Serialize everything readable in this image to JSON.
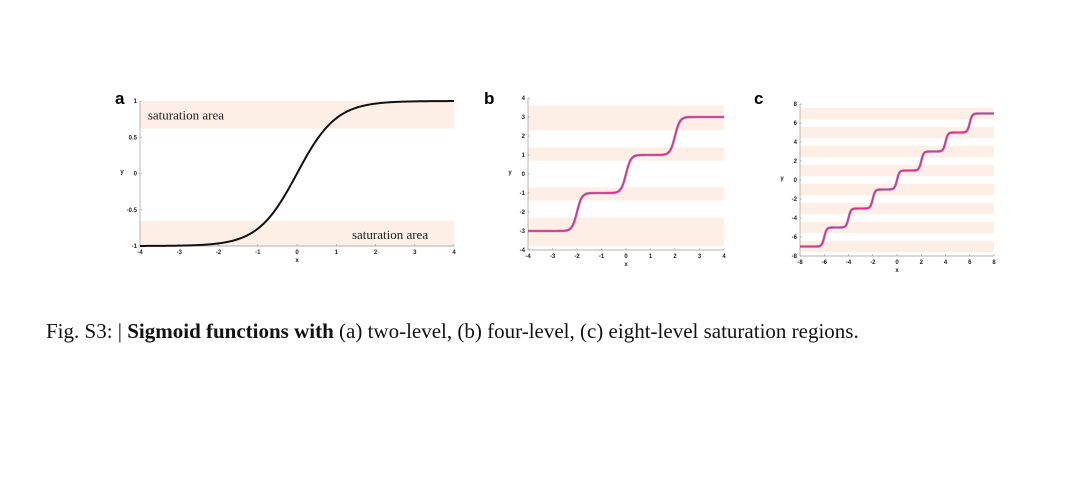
{
  "caption": {
    "prefix": "Fig. S3: | ",
    "bold": "Sigmoid functions with",
    "rest": " (a) two-level, (b) four-level, (c) eight-level saturation regions."
  },
  "colors": {
    "band": "#fdeee6",
    "curve_a": "#111111",
    "curve_bc": "#e0318c",
    "curve_bc_shadow": "#5a4a9a",
    "axis": "#999999"
  },
  "chart_data": [
    {
      "panel": "a",
      "type": "line",
      "xlabel": "x",
      "ylabel": "y",
      "xlim": [
        -4,
        4
      ],
      "ylim": [
        -1,
        1
      ],
      "xticks": [
        "-4",
        "-3",
        "-2",
        "-1",
        "0",
        "1",
        "2",
        "3",
        "4"
      ],
      "yticks": [
        "-1",
        "-0.5",
        "0",
        "0.5",
        "1"
      ],
      "series": [
        {
          "function": "tanh(x)",
          "x": [
            -4,
            -3,
            -2,
            -1.5,
            -1,
            -0.5,
            0,
            0.5,
            1,
            1.5,
            2,
            3,
            4
          ],
          "y": [
            -0.999,
            -0.995,
            -0.964,
            -0.905,
            -0.762,
            -0.462,
            0,
            0.462,
            0.762,
            0.905,
            0.964,
            0.995,
            0.999
          ]
        }
      ],
      "bands": [
        [
          -1,
          -0.65
        ],
        [
          0.62,
          1
        ]
      ],
      "annotations": [
        {
          "text": "saturation area",
          "x": -3.8,
          "y": 0.8
        },
        {
          "text": "saturation area",
          "x": 1.4,
          "y": -0.85
        }
      ]
    },
    {
      "panel": "b",
      "type": "line",
      "xlabel": "x",
      "ylabel": "y",
      "xlim": [
        -4,
        4
      ],
      "ylim": [
        -4,
        4
      ],
      "xticks": [
        "-4",
        "-3",
        "-2",
        "-1",
        "0",
        "1",
        "2",
        "3",
        "4"
      ],
      "yticks": [
        "-4",
        "-3",
        "-2",
        "-1",
        "0",
        "1",
        "2",
        "3",
        "4"
      ],
      "levels": [
        -3,
        -1,
        1,
        3
      ],
      "steepness": 5,
      "series": [
        {
          "function": "sum of tanh steps",
          "x": [
            -4,
            -3,
            -2,
            -1.5,
            -1,
            -0.5,
            0,
            0.5,
            1,
            1.5,
            2,
            3,
            4
          ],
          "y": [
            -3,
            -3,
            -2,
            -1.05,
            -1,
            -0.95,
            0,
            0.95,
            1,
            1.05,
            2,
            3,
            3
          ]
        }
      ],
      "bands": [
        [
          -3.8,
          -2.3
        ],
        [
          -1.4,
          -0.7
        ],
        [
          0.7,
          1.4
        ],
        [
          2.3,
          3.6
        ]
      ]
    },
    {
      "panel": "c",
      "type": "line",
      "xlabel": "x",
      "ylabel": "y",
      "xlim": [
        -8,
        8
      ],
      "ylim": [
        -8,
        8
      ],
      "xticks": [
        "-8",
        "-6",
        "-4",
        "-2",
        "0",
        "2",
        "4",
        "6",
        "8"
      ],
      "yticks": [
        "-8",
        "-6",
        "-4",
        "-2",
        "0",
        "2",
        "4",
        "6",
        "8"
      ],
      "levels": [
        -7,
        -5,
        -3,
        -1,
        1,
        3,
        5,
        7
      ],
      "steepness": 5,
      "series": [
        {
          "function": "sum of tanh steps",
          "x": [
            -8,
            -7,
            -6,
            -5,
            -4,
            -3,
            -2,
            -1,
            0,
            1,
            2,
            3,
            4,
            5,
            6,
            7,
            8
          ],
          "y": [
            -7,
            -7,
            -6,
            -5,
            -4,
            -3,
            -2,
            -1,
            0,
            1,
            2,
            3,
            4,
            5,
            6,
            7,
            7
          ]
        }
      ],
      "bands": [
        [
          -7.6,
          -6.4
        ],
        [
          -5.6,
          -4.4
        ],
        [
          -3.6,
          -2.4
        ],
        [
          -1.6,
          -0.4
        ],
        [
          0.4,
          1.6
        ],
        [
          2.4,
          3.6
        ],
        [
          4.4,
          5.6
        ],
        [
          6.4,
          7.6
        ]
      ]
    }
  ]
}
